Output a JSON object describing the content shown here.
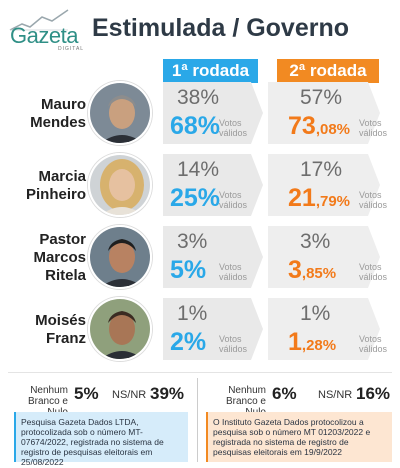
{
  "brand": {
    "logo_text": "Gazeta",
    "logo_sub": "DIGITAL"
  },
  "title": "Estimulada / Governo",
  "rounds": {
    "first": "1ª rodada",
    "second": "2ª rodada"
  },
  "valid_label_line1": "Votos",
  "valid_label_line2": "válidos",
  "colors": {
    "first": "#2aa8e8",
    "second": "#f28a22",
    "title": "#2e3a46"
  },
  "candidates": [
    {
      "name_line1": "Mauro",
      "name_line2": "Mendes",
      "name_line3": "",
      "r1_total": "38%",
      "r1_valid": "68%",
      "r2_total": "57%",
      "r2_valid_int": "73",
      "r2_valid_dec": ",08%"
    },
    {
      "name_line1": "Marcia",
      "name_line2": "Pinheiro",
      "name_line3": "",
      "r1_total": "14%",
      "r1_valid": "25%",
      "r2_total": "17%",
      "r2_valid_int": "21",
      "r2_valid_dec": ",79%"
    },
    {
      "name_line1": "Pastor",
      "name_line2": "Marcos",
      "name_line3": "Ritela",
      "r1_total": "3%",
      "r1_valid": "5%",
      "r2_total": "3%",
      "r2_valid_int": "3",
      "r2_valid_dec": ",85%"
    },
    {
      "name_line1": "Moisés",
      "name_line2": "Franz",
      "name_line3": "",
      "r1_total": "1%",
      "r1_valid": "2%",
      "r2_total": "1%",
      "r2_valid_int": "1",
      "r2_valid_dec": ",28%"
    }
  ],
  "footer": {
    "nenhum_label_line1": "Nenhum",
    "nenhum_label_line2": "Branco e Nulo",
    "nsnr_label": "NS/NR",
    "r1_nenhum": "5%",
    "r1_nsnr": "39%",
    "r2_nenhum": "6%",
    "r2_nsnr": "16%"
  },
  "notes": {
    "first": "Pesquisa Gazeta Dados LTDA, protocolizada sob o número MT-07674/2022, registrada no sistema de registro de pesquisas eleitorais em 25/08/2022",
    "second": "O Instituto Gazeta Dados protocolizou a pesquisa sob o número MT 01203/2022 e registrada no sistema de registro de pesquisas eleitorais em 19/9/2022"
  },
  "chart_data": {
    "type": "table",
    "title": "Estimulada / Governo",
    "columns": [
      "1ª rodada",
      "1ª rodada (Votos válidos)",
      "2ª rodada",
      "2ª rodada (Votos válidos)"
    ],
    "rows": [
      {
        "candidate": "Mauro Mendes",
        "values": [
          38,
          68,
          57,
          73.08
        ]
      },
      {
        "candidate": "Marcia Pinheiro",
        "values": [
          14,
          25,
          17,
          21.79
        ]
      },
      {
        "candidate": "Pastor Marcos Ritela",
        "values": [
          3,
          5,
          3,
          3.85
        ]
      },
      {
        "candidate": "Moisés Franz",
        "values": [
          1,
          2,
          1,
          1.28
        ]
      }
    ],
    "other": [
      {
        "label": "Nenhum Branco e Nulo",
        "values": [
          5,
          6
        ]
      },
      {
        "label": "NS/NR",
        "values": [
          39,
          16
        ]
      }
    ]
  }
}
